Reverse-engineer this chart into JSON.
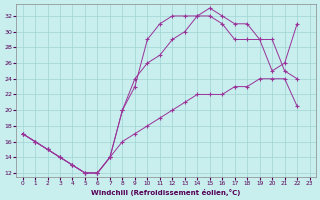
{
  "background_color": "#c8eeee",
  "grid_color": "#a0d4d4",
  "line_color": "#993399",
  "xlabel": "Windchill (Refroidissement éolien,°C)",
  "xlim": [
    -0.5,
    23.5
  ],
  "ylim": [
    11.5,
    33.5
  ],
  "xticks": [
    0,
    1,
    2,
    3,
    4,
    5,
    6,
    7,
    8,
    9,
    10,
    11,
    12,
    13,
    14,
    15,
    16,
    17,
    18,
    19,
    20,
    21,
    22,
    23
  ],
  "yticks": [
    12,
    14,
    16,
    18,
    20,
    22,
    24,
    26,
    28,
    30,
    32
  ],
  "line1_x": [
    0,
    1,
    2,
    3,
    4,
    5,
    6,
    7,
    8,
    9,
    10,
    11,
    12,
    13,
    14,
    15,
    16,
    17,
    18,
    19,
    20,
    21,
    22
  ],
  "line1_y": [
    17,
    16,
    15,
    14,
    13,
    12,
    12,
    14,
    20,
    23,
    29,
    31,
    32,
    32,
    32,
    33,
    32,
    31,
    31,
    29,
    25,
    26,
    31
  ],
  "line2_x": [
    0,
    1,
    2,
    3,
    4,
    5,
    6,
    7,
    8,
    9,
    10,
    11,
    12,
    13,
    14,
    15,
    16,
    17,
    18,
    19,
    20,
    21,
    22
  ],
  "line2_y": [
    17,
    16,
    15,
    14,
    13,
    12,
    12,
    14,
    16,
    17,
    18,
    19,
    20,
    21,
    22,
    22,
    22,
    23,
    23,
    24,
    24,
    24,
    20.5
  ],
  "line3_x": [
    0,
    1,
    2,
    3,
    4,
    5,
    6,
    7,
    8,
    9,
    10,
    11,
    12,
    13,
    14,
    15,
    16,
    17,
    18,
    19,
    20,
    21,
    22
  ],
  "line3_y": [
    17,
    16,
    15,
    14,
    13,
    12,
    12,
    14,
    20,
    24,
    26,
    27,
    29,
    30,
    32,
    32,
    31,
    29,
    29,
    29,
    29,
    25,
    24
  ]
}
